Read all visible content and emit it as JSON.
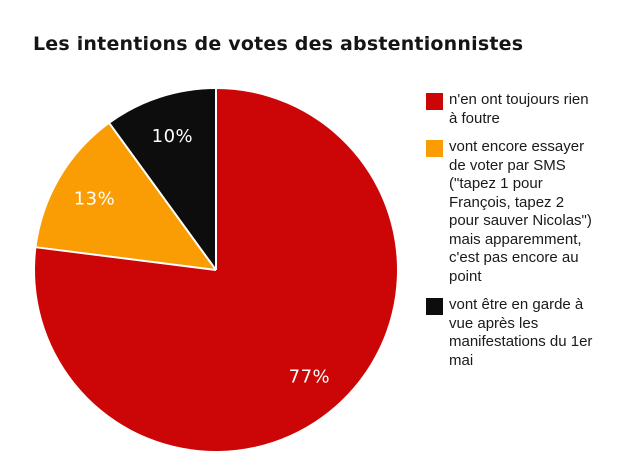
{
  "title": "Les intentions de votes des abstentionnistes",
  "chart_data": {
    "type": "pie",
    "title": "Les intentions de votes des abstentionnistes",
    "categories": [
      "n'en ont toujours rien à foutre",
      "vont encore essayer de voter par SMS (\"tapez 1 pour François, tapez 2 pour sauver Nicolas\") mais apparemment, c'est pas encore au point",
      "vont être en garde à vue après les manifestations du 1er mai"
    ],
    "values": [
      77,
      13,
      10
    ],
    "unit": "%",
    "slice_labels": [
      "77%",
      "13%",
      "10%"
    ],
    "colors": [
      "#cc0606",
      "#fa9d04",
      "#0d0d0d"
    ],
    "slice_label_color": "#ffffff",
    "separator_color": "#ffffff",
    "start_angle_deg": 0,
    "direction": "clockwise",
    "legend_position": "right",
    "background": "#ffffff"
  },
  "legend": {
    "items": [
      {
        "label": "n'en ont toujours rien\nà foutre",
        "color": "#cc0606"
      },
      {
        "label": "vont encore essayer\nde voter par SMS\n(\"tapez 1 pour\nFrançois, tapez 2\npour sauver Nicolas\")\nmais apparemment,\nc'est pas encore au\npoint",
        "color": "#fa9d04"
      },
      {
        "label": "vont être en garde à\nvue après les\nmanifestations du 1er\nmai",
        "color": "#0d0d0d"
      }
    ]
  }
}
